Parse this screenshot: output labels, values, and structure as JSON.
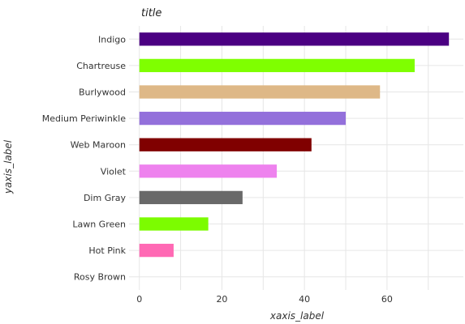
{
  "chart_data": {
    "type": "bar",
    "orientation": "horizontal",
    "title": "title",
    "xlabel": "xaxis_label",
    "ylabel": "yaxis_label",
    "categories": [
      "Rosy Brown",
      "Hot Pink",
      "Lawn Green",
      "Dim Gray",
      "Violet",
      "Web Maroon",
      "Medium Periwinkle",
      "Burlywood",
      "Chartreuse",
      "Indigo"
    ],
    "values": [
      0,
      8.3,
      16.7,
      25,
      33.3,
      41.7,
      50,
      58.3,
      66.7,
      75
    ],
    "colors": [
      "#bc8f8f",
      "#ff69b4",
      "#7cfc00",
      "#696969",
      "#ee82ee",
      "#800000",
      "#9370db",
      "#deb887",
      "#7fff00",
      "#4b0082"
    ],
    "xticks": [
      0,
      20,
      40,
      60
    ],
    "xtick_labels": [
      "0",
      "20",
      "40",
      "60"
    ],
    "xlim": [
      -2.5,
      78.5
    ],
    "grid": true,
    "legend": "none"
  }
}
